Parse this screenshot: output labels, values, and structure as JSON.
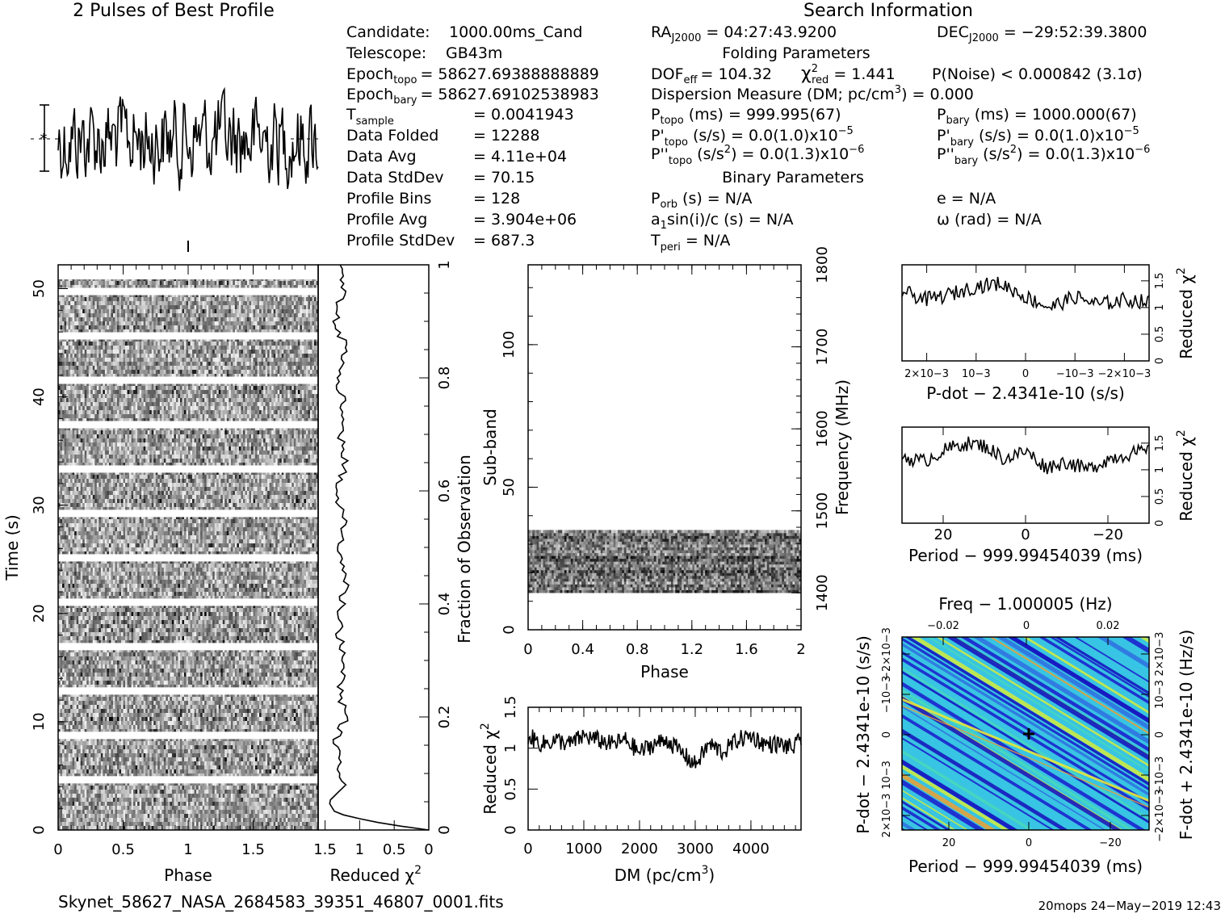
{
  "chart_data": [
    {
      "id": "best_profile",
      "type": "line",
      "title": "2 Pulses of Best Profile",
      "note": "noise-like profile trace over 2 pulse periods (256 bins)"
    },
    {
      "id": "time_phase",
      "type": "heatmap",
      "xlabel": "Phase",
      "ylabel": "Time (s)",
      "xlim": [
        0,
        2
      ],
      "ylim": [
        0,
        52.2
      ],
      "xticks": [
        "0",
        "0.5",
        "1",
        "1.5"
      ],
      "yticks": [
        "0",
        "10",
        "20",
        "30",
        "40",
        "50"
      ],
      "gaps_at_s": [
        4.6,
        8.7,
        12.8,
        16.9,
        21.0,
        25.1,
        29.2,
        33.3,
        37.4,
        41.5,
        45.6,
        49.7
      ]
    },
    {
      "id": "time_chi2",
      "type": "line",
      "xlabel": "Reduced χ2",
      "ylabel": "Fraction of Observation",
      "xticks": [
        "1.5",
        "1",
        "0.5",
        "0"
      ],
      "yticks": [
        "0",
        "0.2",
        "0.4",
        "0.6",
        "0.8",
        "1"
      ],
      "xlim": [
        1.6,
        0
      ],
      "fraction": [
        0.0,
        0.01,
        0.02,
        0.03,
        0.05,
        0.08,
        0.1,
        0.13,
        0.16,
        0.2,
        0.25,
        0.3,
        0.35,
        0.4,
        0.45,
        0.5,
        0.55,
        0.6,
        0.65,
        0.7,
        0.75,
        0.8,
        0.85,
        0.9,
        0.95,
        1.0
      ],
      "chi2": [
        0.0,
        0.6,
        1.0,
        1.35,
        1.45,
        1.2,
        1.3,
        1.25,
        1.35,
        1.2,
        1.3,
        1.2,
        1.3,
        1.25,
        1.2,
        1.3,
        1.2,
        1.35,
        1.2,
        1.3,
        1.25,
        1.3,
        1.2,
        1.35,
        1.25,
        1.3
      ]
    },
    {
      "id": "subband_phase",
      "type": "heatmap",
      "xlabel": "Phase",
      "ylabel": "Sub-band",
      "y2label": "Frequency (MHz)",
      "xlim": [
        0,
        2
      ],
      "ylim": [
        0,
        128
      ],
      "xticks": [
        "0",
        "0.4",
        "0.8",
        "1.2",
        "1.6",
        "2"
      ],
      "yticks": [
        "0",
        "50",
        "100"
      ],
      "y2ticks": [
        "1400",
        "1500",
        "1600",
        "1700",
        "1800"
      ],
      "band_rows": [
        13,
        35
      ]
    },
    {
      "id": "dm_chi2",
      "type": "line",
      "xlabel": "DM (pc/cm3)",
      "ylabel": "Reduced χ2",
      "xlim": [
        0,
        4900
      ],
      "ylim": [
        0,
        1.5
      ],
      "xticks": [
        "0",
        "1000",
        "2000",
        "3000",
        "4000"
      ],
      "yticks": [
        "0",
        "0.5",
        "1",
        "1.5"
      ],
      "x": [
        0,
        250,
        500,
        750,
        1000,
        1250,
        1500,
        1750,
        2000,
        2250,
        2500,
        2750,
        3000,
        3250,
        3500,
        3750,
        4000,
        4250,
        4500,
        4750,
        4900
      ],
      "y": [
        1.15,
        1.05,
        1.1,
        1.05,
        1.15,
        1.1,
        1.05,
        1.1,
        0.95,
        1.05,
        1.1,
        0.95,
        0.8,
        1.05,
        0.95,
        1.1,
        1.15,
        1.05,
        1.05,
        1.0,
        1.1
      ]
    },
    {
      "id": "pdot_chi2",
      "type": "line",
      "xlabel": "P-dot − 2.4341e-10 (s/s)",
      "ylabel": "Reduced χ2",
      "xlim": [
        0.0025,
        -0.0025
      ],
      "ylim": [
        0,
        1.8
      ],
      "xticks": [
        "2×10−3",
        "10−3",
        "0",
        "−10−3",
        "−2×10−3"
      ],
      "yticks": [
        "0",
        "0.5",
        "1",
        "1.5"
      ],
      "x": [
        0.0025,
        0.002,
        0.0015,
        0.001,
        0.0005,
        0.0,
        -0.0005,
        -0.001,
        -0.0015,
        -0.002,
        -0.0025
      ],
      "y": [
        1.3,
        1.15,
        1.25,
        1.4,
        1.45,
        1.2,
        1.0,
        1.2,
        1.05,
        1.15,
        1.1
      ]
    },
    {
      "id": "period_chi2",
      "type": "line",
      "xlabel": "Period − 999.99454039 (ms)",
      "ylabel": "Reduced χ2",
      "xlim": [
        30,
        -30
      ],
      "ylim": [
        0,
        1.8
      ],
      "xticks": [
        "20",
        "0",
        "−20"
      ],
      "yticks": [
        "0",
        "0.5",
        "1",
        "1.5"
      ],
      "x": [
        30,
        25,
        20,
        15,
        10,
        5,
        0,
        -5,
        -10,
        -15,
        -20,
        -25,
        -30
      ],
      "y": [
        1.25,
        1.15,
        1.35,
        1.5,
        1.45,
        1.2,
        1.35,
        1.05,
        1.15,
        1.0,
        1.2,
        1.3,
        1.35
      ]
    },
    {
      "id": "ppdot_plane",
      "type": "heatmap",
      "xlabel": "Period − 999.99454039 (ms)",
      "x2label": "Freq − 1.000005 (Hz)",
      "ylabel": "P-dot − 2.4341e-10 (s/s)",
      "y2label": "F-dot + 2.4341e-10 (Hz/s)",
      "xticks": [
        "20",
        "0",
        "−20"
      ],
      "x2ticks": [
        "−0.02",
        "0",
        "0.02"
      ],
      "yticks": [
        "2×10−3",
        "10−3",
        "0",
        "−10−3",
        "−2×10−3"
      ],
      "y2ticks": [
        "−2×10−3",
        "−10−3",
        "0",
        "10−3",
        "2×10−3"
      ],
      "colors": [
        "#1a1acc",
        "#2f6fe0",
        "#36c6e6",
        "#49d9b8",
        "#6fe066",
        "#d6ec3a",
        "#f0a030"
      ]
    }
  ],
  "info": {
    "header": "Search Information",
    "candidate_label": "Candidate:",
    "candidate": "1000.00ms_Cand",
    "telescope_label": "Telescope:",
    "telescope": "GB43m",
    "epoch_topo_label": "Epoch",
    "epoch_topo_sub": "topo",
    "epoch_topo": "= 58627.69388888889",
    "epoch_bary_label": "Epoch",
    "epoch_bary_sub": "bary",
    "epoch_bary": "= 58627.69102538983",
    "tsample_label": "T",
    "tsample_sub": "sample",
    "tsample": "=   0.0041943",
    "data_folded_label": "Data Folded",
    "data_folded": "=   12288",
    "data_avg_label": "Data Avg",
    "data_avg": "=   4.11e+04",
    "data_std_label": "Data StdDev",
    "data_std": "=   70.15",
    "profile_bins_label": "Profile Bins",
    "profile_bins": "=   128",
    "profile_avg_label": "Profile Avg",
    "profile_avg": "=   3.904e+06",
    "profile_std_label": "Profile StdDev",
    "profile_std": "=   687.3",
    "ra_label": "RA",
    "ra_sub": "J2000",
    "ra": "= 04:27:43.9200",
    "dec_label": "DEC",
    "dec_sub": "J2000",
    "dec": "= −29:52:39.3800",
    "folding_header": "Folding Parameters",
    "dof_label": "DOF",
    "dof_sub": "eff",
    "dof": "= 104.32",
    "chi_label": "χ",
    "chi_sup": "2",
    "chi_sub": "red",
    "chi": "= 1.441",
    "pnoise": "P(Noise) < 0.000842   (3.1σ)",
    "dm_line": "Dispersion Measure (DM; pc/cm",
    "dm_sup": "3",
    "dm_val": ") = 0.000",
    "ptopo_label": "P",
    "ptopo_sub": "topo",
    "ptopo": "(ms) =   999.995(67)",
    "pbary_label": "P",
    "pbary_sub": "bary",
    "pbary": "(ms) =   1000.000(67)",
    "pdtopo_label": "P'",
    "pdtopo_sub": "topo",
    "pdtopo": "(s/s) = 0.0(1.0)x10",
    "pdtopo_exp": "−5",
    "pdbary_label": "P'",
    "pdbary_sub": "bary",
    "pdbary": "(s/s) = 0.0(1.0)x10",
    "pdbary_exp": "−5",
    "pddtopo_label": "P''",
    "pddtopo_sub": "topo",
    "pddtopo_a": "(s/s",
    "pddtopo_sup": "2",
    "pddtopo_b": ") = 0.0(1.3)x10",
    "pddtopo_exp": "−6",
    "pddbary_label": "P''",
    "pddbary_sub": "bary",
    "pddbary_a": "(s/s",
    "pddbary_sup": "2",
    "pddbary_b": ") = 0.0(1.3)x10",
    "pddbary_exp": "−6",
    "binary_header": "Binary Parameters",
    "porb_label": "P",
    "porb_sub": "orb",
    "porb": "(s) = N/A",
    "e": "e = N/A",
    "a1": "a",
    "a1_sub": "1",
    "a1_rest": "sin(i)/c (s) = N/A",
    "omega": "ω (rad) = N/A",
    "tperi_label": "T",
    "tperi_sub": "peri",
    "tperi": "= N/A"
  },
  "footer": {
    "filename": "Skynet_58627_NASA_2684583_39351_46807_0001.fits",
    "stamp": "20mops 24−May−2019 12:43"
  }
}
